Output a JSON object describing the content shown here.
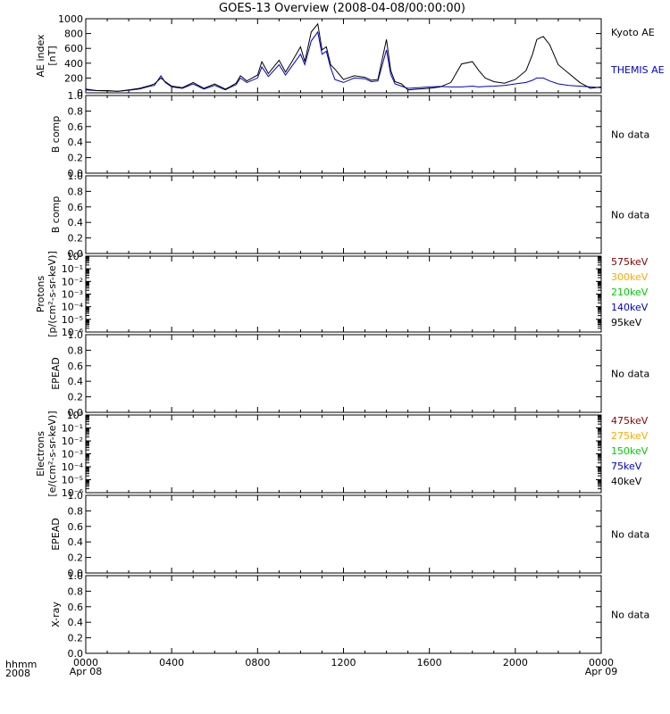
{
  "title": "GOES-13 Overview (2008-04-08/00:00:00)",
  "colors": {
    "axis": "#000000",
    "kyoto": "#000000",
    "themis": "#0000cc",
    "ch_575": "#880000",
    "ch_300": "#ffaa00",
    "ch_210": "#00cc00",
    "ch_140": "#0000cc",
    "ch_95": "#000000"
  },
  "time_axis": {
    "corner_labels": [
      "hhmm",
      "2008"
    ],
    "ticks": [
      {
        "label": "0000",
        "sub": "Apr 08"
      },
      {
        "label": "0400",
        "sub": ""
      },
      {
        "label": "0800",
        "sub": ""
      },
      {
        "label": "1200",
        "sub": ""
      },
      {
        "label": "1600",
        "sub": ""
      },
      {
        "label": "2000",
        "sub": ""
      },
      {
        "label": "0000",
        "sub": "Apr 09"
      }
    ]
  },
  "chart_data": [
    {
      "type": "line",
      "panel": "ae",
      "ylabel": [
        "AE index",
        "[nT]"
      ],
      "ylim": [
        0,
        1000
      ],
      "yticks": [
        "0",
        "200",
        "400",
        "600",
        "800",
        "1000"
      ],
      "x_unit": "hours after 2008-04-08 00:00",
      "x": [
        0,
        0.5,
        1,
        1.5,
        2,
        2.5,
        3,
        3.2,
        3.5,
        3.7,
        4,
        4.5,
        5,
        5.5,
        6,
        6.5,
        6.7,
        7,
        7.2,
        7.5,
        8,
        8.2,
        8.5,
        9,
        9.3,
        9.6,
        10,
        10.2,
        10.5,
        10.8,
        11,
        11.2,
        11.4,
        11.6,
        12,
        12.5,
        13,
        13.3,
        13.6,
        14,
        14.2,
        14.4,
        14.7,
        15,
        15.5,
        16,
        16.5,
        17,
        17.5,
        18,
        18.3,
        18.6,
        19,
        19.5,
        20,
        20.5,
        20.8,
        21,
        21.3,
        21.6,
        22,
        22.5,
        23,
        23.5,
        24
      ],
      "series": [
        {
          "name": "Kyoto AE",
          "values": [
            50,
            30,
            30,
            20,
            40,
            60,
            100,
            120,
            200,
            150,
            90,
            70,
            140,
            60,
            120,
            50,
            80,
            130,
            230,
            160,
            240,
            420,
            260,
            440,
            280,
            420,
            620,
            420,
            820,
            930,
            580,
            620,
            380,
            320,
            180,
            230,
            210,
            170,
            180,
            720,
            300,
            150,
            120,
            40,
            50,
            60,
            80,
            140,
            390,
            420,
            300,
            200,
            150,
            130,
            180,
            300,
            520,
            720,
            760,
            650,
            380,
            260,
            140,
            60,
            80
          ]
        },
        {
          "name": "THEMIS AE",
          "values": [
            40,
            30,
            25,
            20,
            35,
            50,
            90,
            100,
            230,
            140,
            80,
            60,
            120,
            50,
            100,
            40,
            70,
            110,
            200,
            140,
            200,
            350,
            220,
            380,
            240,
            360,
            520,
            380,
            700,
            820,
            520,
            560,
            340,
            180,
            140,
            200,
            190,
            150,
            160,
            580,
            250,
            120,
            90,
            60,
            70,
            80,
            85,
            80,
            80,
            90,
            80,
            85,
            90,
            100,
            120,
            140,
            170,
            200,
            200,
            160,
            120,
            100,
            90,
            80,
            70
          ]
        }
      ]
    },
    {
      "type": "line",
      "panel": "bcomp1",
      "ylabel": [
        "B comp"
      ],
      "ylim": [
        0,
        1
      ],
      "yticks": [
        "0.0",
        "0.2",
        "0.4",
        "0.6",
        "0.8",
        "1.0"
      ],
      "note": "No data",
      "series": []
    },
    {
      "type": "line",
      "panel": "bcomp2",
      "ylabel": [
        "B comp"
      ],
      "ylim": [
        0,
        1
      ],
      "yticks": [
        "0.0",
        "0.2",
        "0.4",
        "0.6",
        "0.8",
        "1.0"
      ],
      "note": "No data",
      "series": []
    },
    {
      "type": "line",
      "panel": "protons",
      "scale": "log",
      "ylabel": [
        "Protons",
        "[p/(cm²-s-sr-keV)]"
      ],
      "ylim": [
        1e-06,
        1
      ],
      "yticks": [
        "10⁰",
        "10⁻¹",
        "10⁻²",
        "10⁻³",
        "10⁻⁴",
        "10⁻⁵",
        "10⁻⁶"
      ],
      "channels": [
        "575keV",
        "300keV",
        "210keV",
        "140keV",
        "95keV"
      ],
      "series": []
    },
    {
      "type": "line",
      "panel": "epead1",
      "ylabel": [
        "EPEAD"
      ],
      "ylim": [
        0,
        1
      ],
      "yticks": [
        "0.0",
        "0.2",
        "0.4",
        "0.6",
        "0.8",
        "1.0"
      ],
      "note": "No data",
      "series": []
    },
    {
      "type": "line",
      "panel": "electrons",
      "scale": "log",
      "ylabel": [
        "Electrons",
        "[e/(cm²-s-sr-keV)]"
      ],
      "ylim": [
        1e-06,
        1
      ],
      "yticks": [
        "10⁰",
        "10⁻¹",
        "10⁻²",
        "10⁻³",
        "10⁻⁴",
        "10⁻⁵",
        "10⁻⁶"
      ],
      "channels": [
        "475keV",
        "275keV",
        "150keV",
        "75keV",
        "40keV"
      ],
      "series": []
    },
    {
      "type": "line",
      "panel": "epead2",
      "ylabel": [
        "EPEAD"
      ],
      "ylim": [
        0,
        1
      ],
      "yticks": [
        "0.0",
        "0.2",
        "0.4",
        "0.6",
        "0.8",
        "1.0"
      ],
      "note": "No data",
      "series": []
    },
    {
      "type": "line",
      "panel": "xray",
      "ylabel": [
        "X-ray"
      ],
      "ylim": [
        0,
        1
      ],
      "yticks": [
        "0.0",
        "0.2",
        "0.4",
        "0.6",
        "0.8",
        "1.0"
      ],
      "note": "No data",
      "series": []
    }
  ],
  "legend": {
    "ae": [
      "Kyoto AE",
      "THEMIS AE"
    ],
    "protons": [
      "575keV",
      "300keV",
      "210keV",
      "140keV",
      "95keV"
    ],
    "electrons": [
      "475keV",
      "275keV",
      "150keV",
      "75keV",
      "40keV"
    ]
  }
}
